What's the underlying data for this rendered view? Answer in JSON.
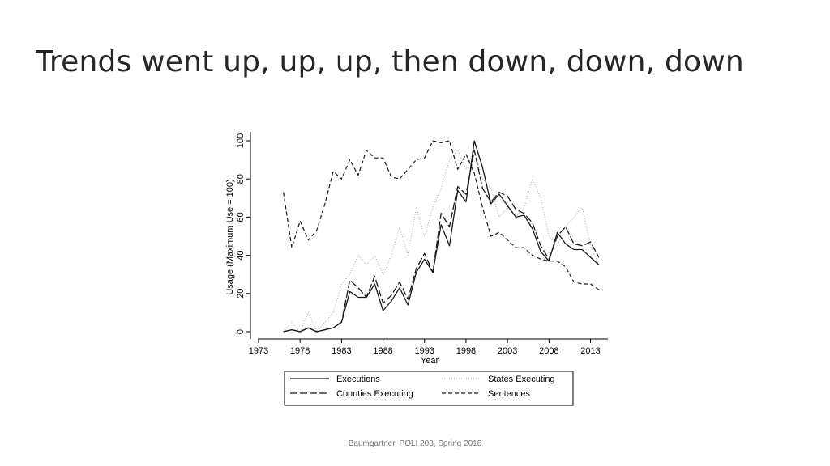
{
  "slide": {
    "title": "Trends went up, up, up, then down, down, down",
    "footer": "Baumgartner, POLI 203, Spring 2018"
  },
  "chart_data": {
    "type": "line",
    "title": "",
    "xlabel": "Year",
    "ylabel": "Usage (Maximum Use = 100)",
    "xlim": [
      1973,
      2015
    ],
    "ylim": [
      0,
      100
    ],
    "xticks": [
      1973,
      1978,
      1983,
      1988,
      1993,
      1998,
      2003,
      2008,
      2013
    ],
    "yticks": [
      0,
      20,
      40,
      60,
      80,
      100
    ],
    "grid": false,
    "legend_position": "bottom",
    "x": [
      1976,
      1977,
      1978,
      1979,
      1980,
      1981,
      1982,
      1983,
      1984,
      1985,
      1986,
      1987,
      1988,
      1989,
      1990,
      1991,
      1992,
      1993,
      1994,
      1995,
      1996,
      1997,
      1998,
      1999,
      2000,
      2001,
      2002,
      2003,
      2004,
      2005,
      2006,
      2007,
      2008,
      2009,
      2010,
      2011,
      2012,
      2013,
      2014
    ],
    "series": [
      {
        "name": "Executions",
        "style": "solid",
        "values": [
          0,
          1,
          0,
          2,
          0,
          1,
          2,
          5,
          21,
          18,
          18,
          25,
          11,
          16,
          23,
          14,
          31,
          38,
          31,
          56,
          45,
          74,
          68,
          100,
          86,
          67,
          72,
          66,
          60,
          61,
          54,
          42,
          37,
          52,
          46,
          43,
          43,
          39,
          35
        ]
      },
      {
        "name": "States Executing",
        "style": "dotted",
        "values": [
          0,
          5,
          0,
          10,
          0,
          5,
          10,
          25,
          30,
          40,
          35,
          40,
          30,
          40,
          55,
          40,
          65,
          50,
          65,
          75,
          90,
          95,
          85,
          95,
          80,
          75,
          60,
          65,
          60,
          65,
          80,
          70,
          50,
          45,
          55,
          60,
          65,
          45,
          35
        ]
      },
      {
        "name": "Counties Executing",
        "style": "longdash",
        "values": [
          0,
          1,
          0,
          2,
          0,
          1,
          2,
          5,
          27,
          23,
          18,
          29,
          15,
          19,
          26,
          17,
          33,
          41,
          31,
          62,
          55,
          76,
          72,
          95,
          75,
          68,
          73,
          71,
          64,
          62,
          57,
          45,
          38,
          50,
          55,
          46,
          45,
          47,
          39
        ]
      },
      {
        "name": "Sentences",
        "style": "dashed",
        "values": [
          73,
          44,
          58,
          48,
          53,
          67,
          84,
          80,
          90,
          82,
          95,
          91,
          91,
          81,
          80,
          85,
          90,
          91,
          100,
          99,
          100,
          85,
          93,
          83,
          65,
          50,
          52,
          48,
          44,
          44,
          40,
          38,
          37,
          37,
          34,
          26,
          25,
          25,
          22
        ]
      }
    ]
  }
}
